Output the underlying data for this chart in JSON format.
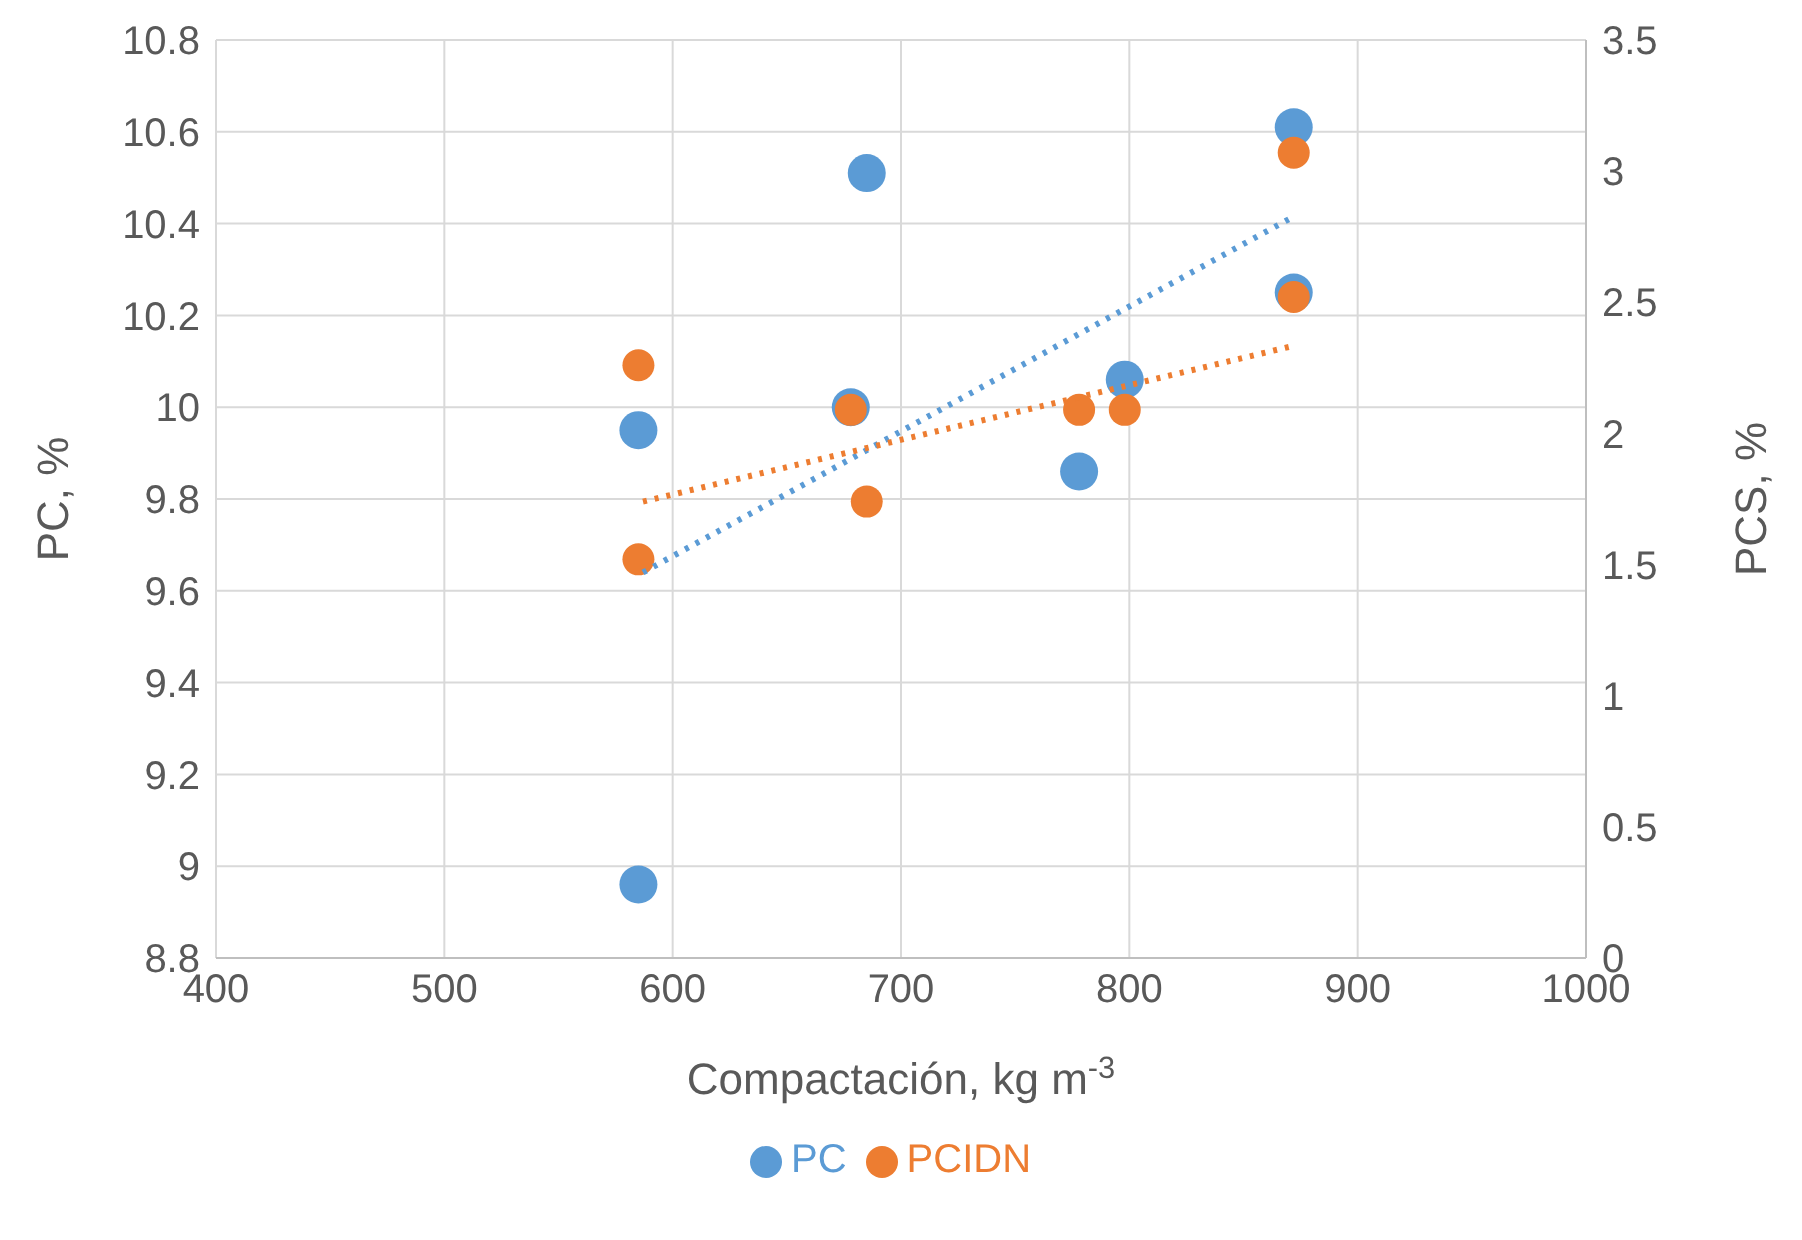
{
  "chart_data": {
    "type": "scatter",
    "xlabel": "Compactación, kg m$^{-3}$",
    "ylabel": "PC, %",
    "y2label": "PCS, %",
    "xlim": [
      400,
      1000
    ],
    "xticks": [
      400,
      500,
      600,
      700,
      800,
      900,
      1000
    ],
    "ylim": [
      8.8,
      10.8
    ],
    "yticks": [
      8.8,
      9,
      9.2,
      9.4,
      9.6,
      9.8,
      10,
      10.2,
      10.4,
      10.6,
      10.8
    ],
    "y2lim": [
      0,
      3.5
    ],
    "y2ticks": [
      0,
      0.5,
      1,
      1.5,
      2,
      2.5,
      3,
      3.5
    ],
    "grid": true,
    "legend": "bottom",
    "marker": "circle",
    "series": [
      {
        "name": "PC",
        "color": "#5b9bd5",
        "x": [
          585,
          585,
          678,
          685,
          778,
          798,
          872,
          872
        ],
        "values": [
          9.95,
          8.96,
          10.0,
          10.51,
          9.86,
          10.06,
          10.61,
          10.25
        ]
      },
      {
        "name": "PCIDN",
        "color": "#ed7d31",
        "axis": "y2",
        "x": [
          585,
          585,
          678,
          685,
          778,
          798,
          872,
          872
        ],
        "values": [
          2.26,
          1.52,
          2.09,
          1.74,
          2.09,
          2.09,
          3.07,
          2.52
        ]
      },
      {
        "type": "line",
        "color": "#5b9bd5",
        "x": [
          587,
          870
        ],
        "values": [
          9.64,
          10.41
        ],
        "marker": "none",
        "line_style": "dotted"
      },
      {
        "type": "line",
        "color": "#ed7d31",
        "axis": "y2",
        "x": [
          587,
          870
        ],
        "values": [
          1.74,
          2.33
        ],
        "marker": "none",
        "line_style": "dotted"
      }
    ]
  }
}
